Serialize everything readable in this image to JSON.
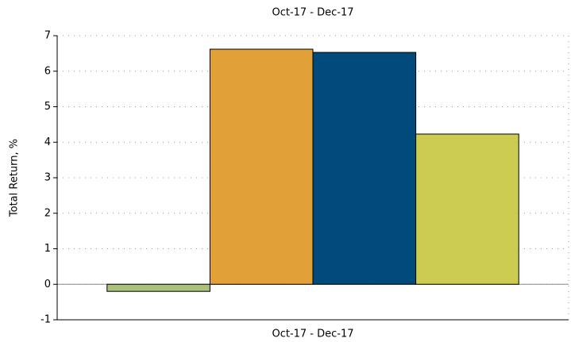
{
  "chart_data": {
    "type": "bar",
    "title": "Oct-17 - Dec-17",
    "ylabel": "Total Return, %",
    "categories": [
      "Oct-17 - Dec-17"
    ],
    "series": [
      {
        "color": "#a9c17a",
        "values": [
          -0.2
        ]
      },
      {
        "color": "#e2a038",
        "values": [
          6.62
        ]
      },
      {
        "color": "#004a7c",
        "values": [
          6.53
        ]
      },
      {
        "color": "#cccc52",
        "values": [
          4.23
        ]
      }
    ],
    "ylim": [
      -1,
      7
    ],
    "yticks": [
      -1,
      0,
      1,
      2,
      3,
      4,
      5,
      6,
      7
    ],
    "grid": true
  }
}
